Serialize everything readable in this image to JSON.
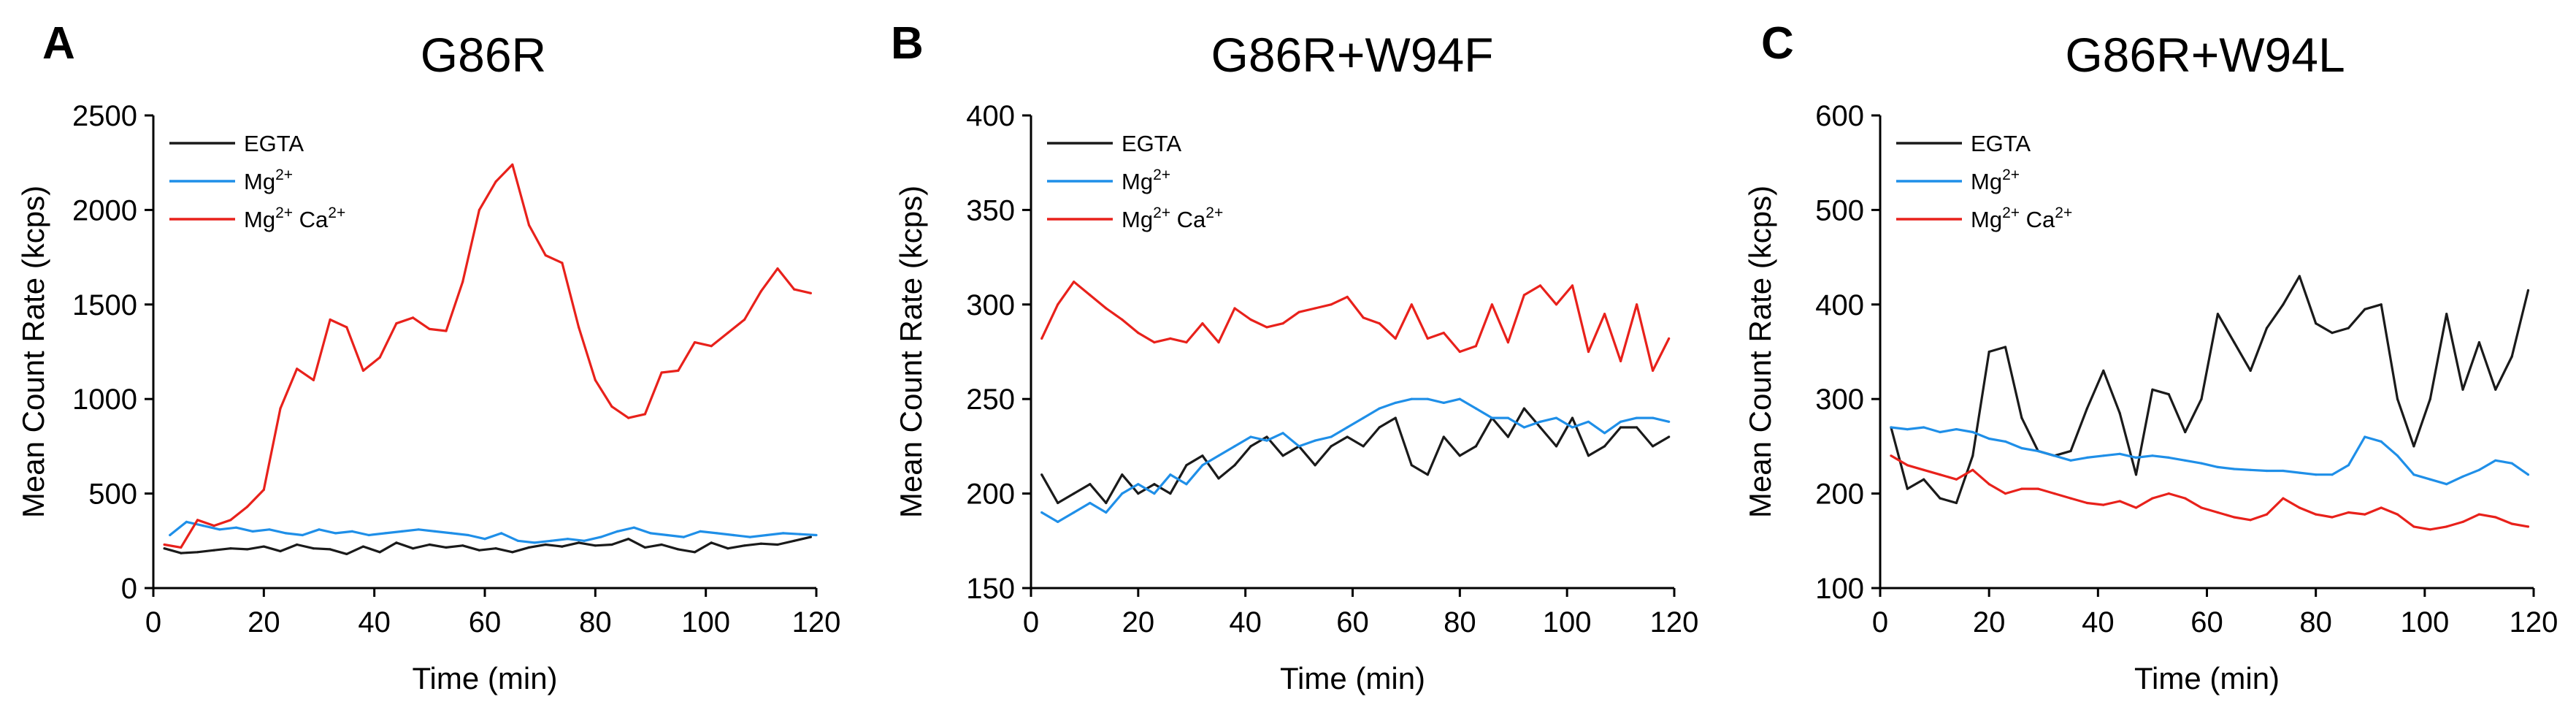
{
  "chart_data": [
    {
      "type": "line",
      "panel": "A",
      "title": "G86R",
      "xlabel": "Time (min)",
      "ylabel": "Mean Count Rate (kcps)",
      "xlim": [
        0,
        120
      ],
      "ylim": [
        0,
        2500
      ],
      "xticks": [
        0,
        20,
        40,
        60,
        80,
        100,
        120
      ],
      "yticks": [
        0,
        500,
        1000,
        1500,
        2000,
        2500
      ],
      "grid": false,
      "legend_position": "top-left",
      "series": [
        {
          "name": "EGTA",
          "label_base": "EGTA",
          "label_sup": "",
          "label_base2": "",
          "label_sup2": "",
          "color": "#1a1a1a",
          "x": [
            2,
            5,
            8,
            11,
            14,
            17,
            20,
            23,
            26,
            29,
            32,
            35,
            38,
            41,
            44,
            47,
            50,
            53,
            56,
            59,
            62,
            65,
            68,
            71,
            74,
            77,
            80,
            83,
            86,
            89,
            92,
            95,
            98,
            101,
            104,
            107,
            110,
            113,
            116,
            119
          ],
          "y": [
            210,
            185,
            190,
            200,
            210,
            205,
            220,
            195,
            230,
            210,
            205,
            180,
            220,
            190,
            240,
            210,
            230,
            215,
            225,
            200,
            210,
            190,
            215,
            230,
            220,
            240,
            225,
            230,
            260,
            215,
            230,
            205,
            190,
            240,
            210,
            225,
            235,
            230,
            250,
            270
          ]
        },
        {
          "name": "Mg2+",
          "label_base": "Mg",
          "label_sup": "2+",
          "label_base2": "",
          "label_sup2": "",
          "color": "#1f8fe8",
          "x": [
            3,
            6,
            9,
            12,
            15,
            18,
            21,
            24,
            27,
            30,
            33,
            36,
            39,
            42,
            45,
            48,
            51,
            54,
            57,
            60,
            63,
            66,
            69,
            72,
            75,
            78,
            81,
            84,
            87,
            90,
            93,
            96,
            99,
            102,
            105,
            108,
            111,
            114,
            117,
            120
          ],
          "y": [
            280,
            350,
            330,
            310,
            320,
            300,
            310,
            290,
            280,
            310,
            290,
            300,
            280,
            290,
            300,
            310,
            300,
            290,
            280,
            260,
            290,
            250,
            240,
            250,
            260,
            250,
            270,
            300,
            320,
            290,
            280,
            270,
            300,
            290,
            280,
            270,
            280,
            290,
            285,
            280
          ]
        },
        {
          "name": "Mg2+ Ca2+",
          "label_base": "Mg",
          "label_sup": "2+",
          "label_base2": " Ca",
          "label_sup2": "2+",
          "color": "#e8211b",
          "x": [
            2,
            5,
            8,
            11,
            14,
            17,
            20,
            23,
            26,
            29,
            32,
            35,
            38,
            41,
            44,
            47,
            50,
            53,
            56,
            59,
            62,
            65,
            68,
            71,
            74,
            77,
            80,
            83,
            86,
            89,
            92,
            95,
            98,
            101,
            104,
            107,
            110,
            113,
            116,
            119
          ],
          "y": [
            230,
            215,
            360,
            330,
            360,
            430,
            520,
            950,
            1160,
            1100,
            1420,
            1380,
            1150,
            1220,
            1400,
            1430,
            1370,
            1360,
            1620,
            2000,
            2150,
            2240,
            1920,
            1760,
            1720,
            1380,
            1100,
            960,
            900,
            920,
            1140,
            1150,
            1300,
            1280,
            1350,
            1420,
            1570,
            1690,
            1580,
            1560
          ]
        }
      ]
    },
    {
      "type": "line",
      "panel": "B",
      "title": "G86R+W94F",
      "xlabel": "Time (min)",
      "ylabel": "Mean Count Rate (kcps)",
      "xlim": [
        0,
        120
      ],
      "ylim": [
        150,
        400
      ],
      "xticks": [
        0,
        20,
        40,
        60,
        80,
        100,
        120
      ],
      "yticks": [
        150,
        200,
        250,
        300,
        350,
        400
      ],
      "grid": false,
      "legend_position": "top-left",
      "series": [
        {
          "name": "EGTA",
          "label_base": "EGTA",
          "label_sup": "",
          "label_base2": "",
          "label_sup2": "",
          "color": "#1a1a1a",
          "x": [
            2,
            5,
            8,
            11,
            14,
            17,
            20,
            23,
            26,
            29,
            32,
            35,
            38,
            41,
            44,
            47,
            50,
            53,
            56,
            59,
            62,
            65,
            68,
            71,
            74,
            77,
            80,
            83,
            86,
            89,
            92,
            95,
            98,
            101,
            104,
            107,
            110,
            113,
            116,
            119
          ],
          "y": [
            210,
            195,
            200,
            205,
            195,
            210,
            200,
            205,
            200,
            215,
            220,
            208,
            215,
            225,
            230,
            220,
            225,
            215,
            225,
            230,
            225,
            235,
            240,
            215,
            210,
            230,
            220,
            225,
            240,
            230,
            245,
            235,
            225,
            240,
            220,
            225,
            235,
            235,
            225,
            230
          ]
        },
        {
          "name": "Mg2+",
          "label_base": "Mg",
          "label_sup": "2+",
          "label_base2": "",
          "label_sup2": "",
          "color": "#1f8fe8",
          "x": [
            2,
            5,
            8,
            11,
            14,
            17,
            20,
            23,
            26,
            29,
            32,
            35,
            38,
            41,
            44,
            47,
            50,
            53,
            56,
            59,
            62,
            65,
            68,
            71,
            74,
            77,
            80,
            83,
            86,
            89,
            92,
            95,
            98,
            101,
            104,
            107,
            110,
            113,
            116,
            119
          ],
          "y": [
            190,
            185,
            190,
            195,
            190,
            200,
            205,
            200,
            210,
            205,
            215,
            220,
            225,
            230,
            228,
            232,
            225,
            228,
            230,
            235,
            240,
            245,
            248,
            250,
            250,
            248,
            250,
            245,
            240,
            240,
            235,
            238,
            240,
            235,
            238,
            232,
            238,
            240,
            240,
            238
          ]
        },
        {
          "name": "Mg2+ Ca2+",
          "label_base": "Mg",
          "label_sup": "2+",
          "label_base2": " Ca",
          "label_sup2": "2+",
          "color": "#e8211b",
          "x": [
            2,
            5,
            8,
            11,
            14,
            17,
            20,
            23,
            26,
            29,
            32,
            35,
            38,
            41,
            44,
            47,
            50,
            53,
            56,
            59,
            62,
            65,
            68,
            71,
            74,
            77,
            80,
            83,
            86,
            89,
            92,
            95,
            98,
            101,
            104,
            107,
            110,
            113,
            116,
            119
          ],
          "y": [
            282,
            300,
            312,
            305,
            298,
            292,
            285,
            280,
            282,
            280,
            290,
            280,
            298,
            292,
            288,
            290,
            296,
            298,
            300,
            304,
            293,
            290,
            282,
            300,
            282,
            285,
            275,
            278,
            300,
            280,
            305,
            310,
            300,
            310,
            275,
            295,
            270,
            300,
            265,
            282
          ]
        }
      ]
    },
    {
      "type": "line",
      "panel": "C",
      "title": "G86R+W94L",
      "xlabel": "Time (min)",
      "ylabel": "Mean Count Rate (kcps)",
      "xlim": [
        0,
        120
      ],
      "ylim": [
        100,
        600
      ],
      "xticks": [
        0,
        20,
        40,
        60,
        80,
        100,
        120
      ],
      "yticks": [
        100,
        200,
        300,
        400,
        500,
        600
      ],
      "grid": false,
      "legend_position": "top-left",
      "series": [
        {
          "name": "EGTA",
          "label_base": "EGTA",
          "label_sup": "",
          "label_base2": "",
          "label_sup2": "",
          "color": "#1a1a1a",
          "x": [
            2,
            5,
            8,
            11,
            14,
            17,
            20,
            23,
            26,
            29,
            32,
            35,
            38,
            41,
            44,
            47,
            50,
            53,
            56,
            59,
            62,
            65,
            68,
            71,
            74,
            77,
            80,
            83,
            86,
            89,
            92,
            95,
            98,
            101,
            104,
            107,
            110,
            113,
            116,
            119
          ],
          "y": [
            270,
            205,
            215,
            195,
            190,
            240,
            350,
            355,
            280,
            245,
            240,
            245,
            290,
            330,
            285,
            220,
            310,
            305,
            265,
            300,
            390,
            360,
            330,
            375,
            400,
            430,
            380,
            370,
            375,
            395,
            400,
            300,
            250,
            300,
            390,
            310,
            360,
            310,
            345,
            415
          ]
        },
        {
          "name": "Mg2+",
          "label_base": "Mg",
          "label_sup": "2+",
          "label_base2": "",
          "label_sup2": "",
          "color": "#1f8fe8",
          "x": [
            2,
            5,
            8,
            11,
            14,
            17,
            20,
            23,
            26,
            29,
            32,
            35,
            38,
            41,
            44,
            47,
            50,
            53,
            56,
            59,
            62,
            65,
            68,
            71,
            74,
            77,
            80,
            83,
            86,
            89,
            92,
            95,
            98,
            101,
            104,
            107,
            110,
            113,
            116,
            119
          ],
          "y": [
            270,
            268,
            270,
            265,
            268,
            265,
            258,
            255,
            248,
            245,
            240,
            235,
            238,
            240,
            242,
            238,
            240,
            238,
            235,
            232,
            228,
            226,
            225,
            224,
            224,
            222,
            220,
            220,
            230,
            260,
            255,
            240,
            220,
            215,
            210,
            218,
            225,
            235,
            232,
            220
          ]
        },
        {
          "name": "Mg2+ Ca2+",
          "label_base": "Mg",
          "label_sup": "2+",
          "label_base2": " Ca",
          "label_sup2": "2+",
          "color": "#e8211b",
          "x": [
            2,
            5,
            8,
            11,
            14,
            17,
            20,
            23,
            26,
            29,
            32,
            35,
            38,
            41,
            44,
            47,
            50,
            53,
            56,
            59,
            62,
            65,
            68,
            71,
            74,
            77,
            80,
            83,
            86,
            89,
            92,
            95,
            98,
            101,
            104,
            107,
            110,
            113,
            116,
            119
          ],
          "y": [
            240,
            230,
            225,
            220,
            215,
            225,
            210,
            200,
            205,
            205,
            200,
            195,
            190,
            188,
            192,
            185,
            195,
            200,
            195,
            185,
            180,
            175,
            172,
            178,
            195,
            185,
            178,
            175,
            180,
            178,
            185,
            178,
            165,
            162,
            165,
            170,
            178,
            175,
            168,
            165
          ]
        }
      ]
    }
  ]
}
